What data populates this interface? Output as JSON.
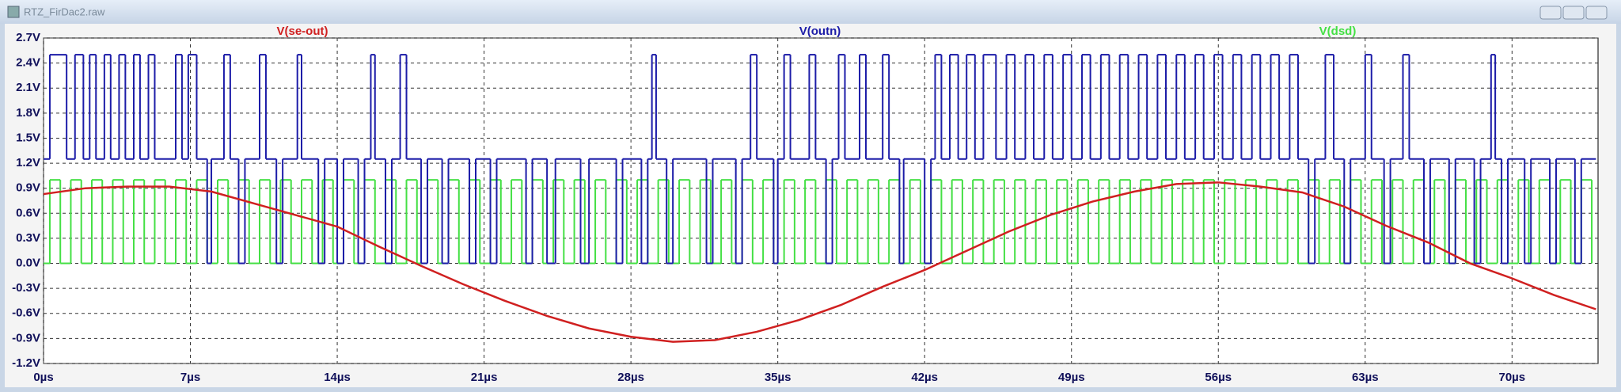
{
  "window_title": "RTZ_FirDac2.raw",
  "chart_data": {
    "type": "line",
    "grid": true,
    "xlim": [
      0,
      74.1
    ],
    "ylim": [
      -1.2,
      2.7
    ],
    "xticks": [
      {
        "value": 0,
        "label": "0µs"
      },
      {
        "value": 7,
        "label": "7µs"
      },
      {
        "value": 14,
        "label": "14µs"
      },
      {
        "value": 21,
        "label": "21µs"
      },
      {
        "value": 28,
        "label": "28µs"
      },
      {
        "value": 35,
        "label": "35µs"
      },
      {
        "value": 42,
        "label": "42µs"
      },
      {
        "value": 49,
        "label": "49µs"
      },
      {
        "value": 56,
        "label": "56µs"
      },
      {
        "value": 63,
        "label": "63µs"
      },
      {
        "value": 70,
        "label": "70µs"
      }
    ],
    "yticks": [
      {
        "value": -1.2,
        "label": "-1.2V"
      },
      {
        "value": -0.9,
        "label": "-0.9V"
      },
      {
        "value": -0.6,
        "label": "-0.6V"
      },
      {
        "value": -0.3,
        "label": "-0.3V"
      },
      {
        "value": 0,
        "label": "0.0V"
      },
      {
        "value": 0.3,
        "label": "0.3V"
      },
      {
        "value": 0.6,
        "label": "0.6V"
      },
      {
        "value": 0.9,
        "label": "0.9V"
      },
      {
        "value": 1.2,
        "label": "1.2V"
      },
      {
        "value": 1.5,
        "label": "1.5V"
      },
      {
        "value": 1.8,
        "label": "1.8V"
      },
      {
        "value": 2.1,
        "label": "2.1V"
      },
      {
        "value": 2.4,
        "label": "2.4V"
      },
      {
        "value": 2.7,
        "label": "2.7V"
      }
    ],
    "series": [
      {
        "name": "V(dsd)",
        "color": "#44e044",
        "step": true,
        "x": [
          0,
          0.3,
          0.8,
          1.3,
          1.8,
          2.3,
          2.8,
          3.3,
          3.8,
          4.3,
          4.8,
          5.3,
          5.8,
          6.3,
          6.8,
          7.3,
          7.8,
          8.3,
          8.8,
          9.3,
          9.8,
          10.3,
          10.8,
          11.3,
          11.8,
          12.3,
          12.8,
          13.3,
          13.8,
          14.3,
          14.8,
          15.3,
          15.8,
          16.3,
          16.8,
          17.3,
          17.8,
          18.3,
          18.8,
          19.3,
          19.8,
          20.3,
          20.8,
          21.3,
          21.8,
          22.3,
          22.8,
          23.3,
          23.8,
          24.3,
          24.8,
          25.3,
          25.8,
          26.3,
          26.8,
          27.3,
          27.8,
          28.3,
          28.8,
          29.3,
          29.8,
          30.3,
          30.8,
          31.3,
          31.8,
          32.3,
          32.8,
          33.3,
          33.8,
          34.3,
          34.8,
          35.3,
          35.8,
          36.3,
          36.8,
          37.3,
          37.8,
          38.3,
          38.8,
          39.3,
          39.8,
          40.3,
          40.8,
          41.3,
          41.8,
          42.3,
          42.8,
          43.3,
          43.8,
          44.3,
          44.8,
          45.3,
          45.8,
          46.3,
          46.8,
          47.3,
          47.8,
          48.3,
          48.8,
          49.3,
          49.8,
          50.3,
          50.8,
          51.3,
          51.8,
          52.3,
          52.8,
          53.3,
          53.8,
          54.3,
          54.8,
          55.3,
          55.8,
          56.3,
          56.8,
          57.3,
          57.8,
          58.3,
          58.8,
          59.3,
          59.8,
          60.3,
          60.8,
          61.3,
          61.8,
          62.3,
          62.8,
          63.3,
          63.8,
          64.3,
          64.8,
          65.3,
          65.8,
          66.3,
          66.8,
          67.3,
          67.8,
          68.3,
          68.8,
          69.3,
          69.8,
          70.3,
          70.8,
          71.3,
          71.8,
          72.3,
          72.8,
          73.3,
          73.8
        ],
        "values": [
          0,
          1,
          0,
          1,
          0,
          1,
          0,
          1,
          0,
          1,
          0,
          1,
          0,
          1,
          0,
          1,
          0,
          1,
          0,
          1,
          0,
          1,
          0,
          1,
          0,
          1,
          0,
          1,
          0,
          1,
          0,
          1,
          0,
          1,
          0,
          1,
          0,
          1,
          0,
          1,
          0,
          1,
          0,
          1,
          0,
          1,
          0,
          1,
          0,
          1,
          0,
          1,
          0,
          1,
          0,
          1,
          0,
          1,
          0,
          1,
          0,
          1,
          0,
          1,
          0,
          1,
          0,
          1,
          0,
          1,
          0,
          1,
          0,
          1,
          0,
          1,
          0,
          1,
          0,
          1,
          0,
          1,
          0,
          1,
          0,
          1,
          0,
          1,
          0,
          1,
          0,
          1,
          0,
          1,
          0,
          1,
          0,
          1,
          0,
          1,
          0,
          1,
          0,
          1,
          0,
          1,
          0,
          1,
          0,
          1,
          0,
          1,
          0,
          1,
          0,
          1,
          0,
          1,
          0,
          1,
          0,
          1,
          0,
          1,
          0,
          1,
          0,
          1,
          0,
          1,
          0,
          1,
          0,
          1,
          0,
          1,
          0,
          1,
          0,
          1,
          0,
          1,
          0,
          1,
          0,
          1,
          0,
          1,
          0
        ]
      },
      {
        "name": "V(outn)",
        "color": "#1c1ca8",
        "step": true,
        "x": [
          0,
          0.3,
          1.1,
          1.5,
          1.9,
          2.2,
          2.5,
          2.9,
          3.2,
          3.6,
          3.9,
          4.3,
          4.6,
          5.0,
          5.3,
          6.3,
          6.6,
          6.9,
          7.3,
          7.8,
          8.0,
          8.6,
          8.9,
          9.3,
          9.6,
          10.3,
          10.6,
          11.1,
          11.4,
          12.1,
          12.3,
          13.1,
          13.4,
          14.0,
          14.3,
          15.0,
          15.3,
          15.6,
          15.8,
          16.3,
          16.6,
          17.0,
          17.3,
          18.0,
          18.3,
          19.0,
          19.3,
          20.3,
          20.6,
          21.3,
          21.6,
          23.0,
          23.3,
          24.0,
          24.4,
          25.6,
          26.0,
          27.3,
          27.6,
          28.5,
          28.8,
          29.0,
          29.2,
          29.7,
          30.0,
          31.6,
          31.9,
          33.0,
          33.3,
          33.7,
          34.0,
          34.8,
          35.0,
          35.3,
          35.6,
          36.5,
          36.8,
          37.3,
          37.6,
          37.9,
          38.2,
          38.9,
          39.2,
          40.0,
          40.3,
          40.8,
          41.0,
          42.0,
          42.3,
          42.5,
          42.8,
          43.2,
          43.6,
          44.0,
          44.4,
          44.8,
          45.4,
          45.9,
          46.3,
          46.8,
          47.2,
          47.7,
          48.1,
          48.6,
          49.0,
          49.5,
          49.9,
          50.4,
          50.8,
          51.3,
          51.7,
          52.2,
          52.6,
          53.1,
          53.5,
          54.0,
          54.4,
          54.9,
          55.3,
          55.8,
          56.2,
          56.7,
          57.1,
          57.6,
          58.0,
          58.5,
          58.9,
          59.4,
          59.8,
          60.3,
          60.6,
          61.1,
          61.5,
          62.0,
          62.3,
          63.0,
          63.3,
          63.9,
          64.2,
          64.8,
          65.1,
          65.8,
          66.1,
          67.0,
          67.3,
          68.2,
          68.5,
          69.0,
          69.2,
          69.5,
          69.8,
          70.6,
          70.9,
          71.8,
          72.1,
          73.0,
          73.3,
          74.0
        ],
        "values": [
          1.25,
          2.5,
          1.25,
          2.5,
          1.25,
          2.5,
          1.25,
          2.5,
          1.25,
          2.5,
          1.25,
          2.5,
          1.25,
          2.5,
          1.25,
          2.5,
          1.25,
          2.5,
          1.25,
          0,
          1.25,
          2.5,
          1.25,
          0,
          1.25,
          2.5,
          1.25,
          0,
          1.25,
          2.5,
          1.25,
          0,
          1.25,
          0,
          1.25,
          0,
          1.25,
          2.5,
          1.25,
          0,
          1.25,
          2.5,
          1.25,
          0,
          1.25,
          0,
          1.25,
          0,
          1.25,
          0,
          1.25,
          0,
          1.25,
          0,
          1.25,
          0,
          1.25,
          0,
          1.25,
          0,
          1.25,
          2.5,
          1.25,
          0,
          1.25,
          0,
          1.25,
          0,
          1.25,
          2.5,
          1.25,
          0,
          1.25,
          2.5,
          1.25,
          2.5,
          1.25,
          0,
          1.25,
          2.5,
          1.25,
          2.5,
          1.25,
          2.5,
          1.25,
          0,
          1.25,
          0,
          1.25,
          2.5,
          1.25,
          2.5,
          1.25,
          2.5,
          1.25,
          2.5,
          1.25,
          2.5,
          1.25,
          2.5,
          1.25,
          2.5,
          1.25,
          2.5,
          1.25,
          2.5,
          1.25,
          2.5,
          1.25,
          2.5,
          1.25,
          2.5,
          1.25,
          2.5,
          1.25,
          2.5,
          1.25,
          2.5,
          1.25,
          2.5,
          1.25,
          2.5,
          1.25,
          2.5,
          1.25,
          2.5,
          1.25,
          2.5,
          1.25,
          0,
          1.25,
          2.5,
          1.25,
          0,
          1.25,
          2.5,
          1.25,
          0,
          1.25,
          2.5,
          1.25,
          0,
          1.25,
          0,
          1.25,
          0,
          1.25,
          2.5,
          1.25,
          0,
          1.25,
          0,
          1.25,
          0,
          1.25,
          0,
          1.25,
          1.25
        ]
      },
      {
        "name": "V(se-out)",
        "color": "#d02020",
        "x": [
          0,
          2,
          4,
          6,
          8,
          10,
          12,
          14,
          16,
          18,
          20,
          22,
          24,
          26,
          28,
          30,
          32,
          34,
          36,
          38,
          40,
          42,
          44,
          46,
          48,
          50,
          52,
          54,
          56,
          58,
          60,
          62,
          64,
          66,
          68,
          70,
          72,
          74
        ],
        "values": [
          0.83,
          0.9,
          0.92,
          0.92,
          0.86,
          0.72,
          0.58,
          0.44,
          0.2,
          -0.03,
          -0.25,
          -0.45,
          -0.63,
          -0.78,
          -0.88,
          -0.94,
          -0.92,
          -0.82,
          -0.68,
          -0.5,
          -0.28,
          -0.08,
          0.15,
          0.38,
          0.58,
          0.74,
          0.86,
          0.95,
          0.97,
          0.92,
          0.85,
          0.68,
          0.45,
          0.25,
          0,
          -0.18,
          -0.38,
          -0.55
        ]
      }
    ]
  }
}
